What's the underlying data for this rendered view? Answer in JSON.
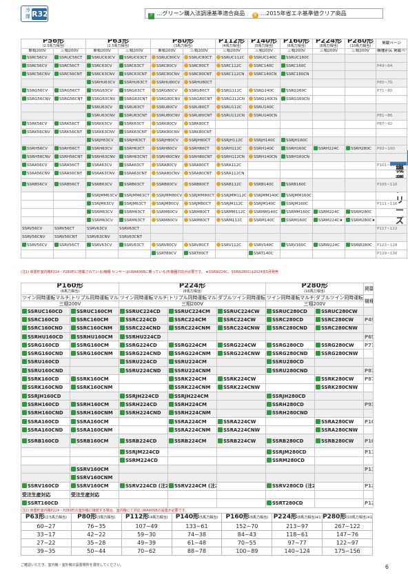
{
  "header": {
    "refr_label": "冷媒",
    "refr_value": "R32",
    "legend_green": "…グリーン購入法調達基準適合商品",
    "legend_yellow": "…2015年省エネ基準値クリア商品",
    "green_mark": "グ",
    "yellow_mark": "省"
  },
  "side_tab": "機種シリーズ",
  "colors": {
    "accent": "#2a6aa8",
    "green": "#2c9a3a",
    "yellow": "#e3a521",
    "note_red": "#c02020"
  },
  "t1": {
    "groups": [
      {
        "t": "P56形",
        "s": "(2.5馬力相当)",
        "n": 2
      },
      {
        "t": "P63形",
        "s": "(2.5馬力相当)",
        "n": 2
      },
      {
        "t": "P80形",
        "s": "(3馬力相当)",
        "n": 2
      },
      {
        "t": "P112形",
        "s": "(4馬力相当)",
        "n": 1
      },
      {
        "t": "P140形",
        "s": "(5馬力相当)",
        "n": 1
      },
      {
        "t": "P160形",
        "s": "(6馬力相当)",
        "n": 1
      },
      {
        "t": "P224形",
        "s": "(8馬力相当)",
        "n": 1
      },
      {
        "t": "P280形",
        "s": "(10馬力相当)",
        "n": 1
      }
    ],
    "ref_header": "掲載ページ",
    "sub": [
      "単相200V",
      "三相200V",
      "単相200V",
      "三相200V",
      "単相200V",
      "三相200V",
      "三相200V",
      "三相200V",
      "三相200V",
      "三相200V",
      "三相200V"
    ],
    "sub_right": "機種別名 掲載ページ",
    "rows": [
      {
        "c": [
          "g:SSRC56CV",
          "g:SSRUC56CT",
          "g:SSRUC63CV",
          "g:SSRUC63CT",
          "y:SSRUC80CV",
          "y:SSRUC80CT",
          "y:SSRUC112C",
          "y:SSRUC140C",
          "g:SSRUC160C",
          "",
          ""
        ],
        "r": "",
        "sh": 1
      },
      {
        "c": [
          "g:SSRC56CV",
          "g:SSRC56CT",
          "g:SSRC63CV",
          "g:SSRC63CT",
          "y:SSRC80CV",
          "y:SSRC80CT",
          "y:SSRC112C",
          "y:SSRC140C",
          "g:SSRC160C",
          "",
          ""
        ],
        "r": "P49~64",
        "sh": 1
      },
      {
        "c": [
          "g:SSRC56CNV",
          "g:SSRC56CNT",
          "g:SSRC63CNV",
          "g:SSRC63CNT",
          "y:SSRC80CNV",
          "y:SSRC80CNT",
          "y:SSRC112CN",
          "y:SSRC140CN",
          "g:SSRC160CN",
          "",
          ""
        ],
        "r": "",
        "sh": 1
      },
      {
        "c": [
          "",
          "",
          "g:SSRHU63CV",
          "g:SSRHU63CT",
          "y:SSRHU80CV",
          "y:SSRHU80CT",
          "",
          "",
          "",
          "",
          ""
        ],
        "r": "P65~70",
        "sh": 1
      },
      {
        "c": [
          "g:SSRG56CV",
          "g:SSRG56CT",
          "g:SSRG63CV",
          "g:SSRG63CT",
          "y:SSRG80CV",
          "y:SSRG80CT",
          "y:SSRG112C",
          "y:SSRG140C",
          "g:SSRG160C",
          "",
          ""
        ],
        "r": "P71~80",
        "sh": 0
      },
      {
        "c": [
          "g:SSRG56CNV",
          "g:SSRG56CNT",
          "g:SSRG63CNV",
          "g:SSRG63CNT",
          "y:SSRG80CNV",
          "y:SSRG80CNT",
          "y:SSRG112CN",
          "y:SSRG140CN",
          "g:SSRG160CN",
          "",
          ""
        ],
        "r": "",
        "sh": 0
      },
      {
        "c": [
          "",
          "",
          "g:SSRU63CV",
          "g:SSRU63CT",
          "y:SSRU80CV",
          "y:SSRU80CT",
          "y:SSRU112C",
          "y:SSRU140C",
          "",
          "",
          ""
        ],
        "r": "",
        "sh": 1
      },
      {
        "c": [
          "",
          "",
          "g:SSRU63CNV",
          "g:SSRU63CNT",
          "y:SSRU80CNV",
          "y:SSRU80CNT",
          "y:SSRU112CN",
          "y:SSRU140CN",
          "",
          "",
          ""
        ],
        "r": "P81~86",
        "sh": 1
      },
      {
        "c": [
          "g:SSRK56CV",
          "g:SSRK56CT",
          "g:SSRK63CV",
          "g:SSRK63CT",
          "y:SSRK80CV",
          "y:SSRK80CT",
          "",
          "",
          "",
          "",
          ""
        ],
        "r": "P87~92",
        "sh": 0
      },
      {
        "c": [
          "g:SSRK56CNV",
          "g:SSRK56CNT",
          "g:SSRK63CNV",
          "g:SSRK63CNT",
          "y:SSRK80CNV",
          "y:SSRK80CNT",
          "",
          "",
          "",
          "",
          ""
        ],
        "r": "",
        "sh": 0
      },
      {
        "c": [
          "",
          "",
          "g:SSRJH63CV",
          "g:SSRJH63CT",
          "y:SSRJH80CV",
          "y:SSRJH80CT",
          "y:SSRJH112C",
          "y:SSRJH140C",
          "g:SSRJH160C",
          "",
          ""
        ],
        "r": "",
        "sh": 1
      },
      {
        "c": [
          "g:SSRH56CV",
          "g:SSRH56CT",
          "g:SSRH63CV",
          "g:SSRH63CT",
          "y:SSRH80CV",
          "y:SSRH80CT",
          "y:SSRH112C",
          "y:SSRH140C",
          "g:SSRH160C",
          "g:SSRH224C",
          "g:SSRH280C"
        ],
        "r": "P93~100",
        "sh": 1
      },
      {
        "c": [
          "g:SSRH56CNV",
          "g:SSRH56CNT",
          "g:SSRH63CNV",
          "g:SSRH63CNT",
          "y:SSRH80CNV",
          "y:SSRH80CNT",
          "y:SSRH112CN",
          "y:SSRH140CN",
          "g:SSRH160CN",
          "",
          ""
        ],
        "r": "",
        "sh": 1
      },
      {
        "c": [
          "g:SSRA56CV",
          "g:SSRA56CT",
          "g:SSRA63CV",
          "g:SSRA63CT",
          "y:SSRA80CV",
          "y:SSRA80CT",
          "y:SSRA112C",
          "",
          "",
          "",
          ""
        ],
        "r": "P101~104",
        "sh": 0
      },
      {
        "c": [
          "g:SSRA56CNV",
          "g:SSRA56CNT",
          "g:SSRA63CNV",
          "g:SSRA63CNT",
          "y:SSRA80CNV",
          "y:SSRA80CNT",
          "y:SSRA112CN",
          "",
          "",
          "",
          ""
        ],
        "r": "",
        "sh": 0
      },
      {
        "c": [
          "g:SSRB56CV",
          "g:SSRB56CT",
          "g:SSRB63CV",
          "g:SSRB63CT",
          "y:SSRB80CV",
          "y:SSRB80CT",
          "y:SSRB112C",
          "y:SSRB140C",
          "g:SSRB160C",
          "",
          ""
        ],
        "r": "P105~110",
        "sh": 1,
        "tall": 1
      },
      {
        "c": [
          "",
          "",
          "g:SSRJMM63CV",
          "g:SSRJMM63CT",
          "y:SSRJMM80CV",
          "y:SSRJMM80CT",
          "y:SSRJMM112C",
          "y:SSRJMM140C",
          "g:SSRJMM160C",
          "",
          ""
        ],
        "r": "",
        "sh": 0
      },
      {
        "c": [
          "",
          "",
          "g:SSRJM63CV",
          "g:SSRJM63CT",
          "y:SSRJM80CV",
          "y:SSRJM80CT",
          "y:SSRJM112C",
          "y:SSRJM140C",
          "g:SSRJM160C",
          "",
          ""
        ],
        "r": "P111~116",
        "sh": 0
      },
      {
        "c": [
          "",
          "",
          "g:SSRM63CV",
          "g:SSRM63CT",
          "y:SSRM80CV",
          "y:SSRM80CT",
          "y:SSRMM112C",
          "y:SSRMM140C",
          "g:SSRMM160C",
          "g:SSRM224C",
          "g:SSRM280C"
        ],
        "r": "",
        "sh": 0
      },
      {
        "c": [
          "",
          "",
          "g:SSRM63CV",
          "g:SSRM63CT",
          "y:SSRM80CV",
          "y:SSRM80CT",
          "y:SSRM112C",
          "y:SSRM140C",
          "g:SSRM160C",
          "g:SSRM224C★",
          "g:SSRM280C★"
        ],
        "r": "",
        "sh": 0
      },
      {
        "c": [
          "SSRV56CV",
          "SSRV56CT",
          "SSRV63CV",
          "SSRV63CT",
          "",
          "",
          "",
          "",
          "",
          "",
          ""
        ],
        "r": "P117~122",
        "sh": 1
      },
      {
        "c": [
          "SSRV56CNV",
          "SSRV56CNT",
          "SSRV63CNV",
          "SSRV63CNT",
          "",
          "",
          "",
          "",
          "",
          "",
          ""
        ],
        "r": "",
        "sh": 1
      },
      {
        "c": [
          "g:SSRV56CV",
          "g:SSRV56CT",
          "g:SSRV63CV",
          "g:SSRV63CT",
          "y:SSRV80CV",
          "y:SSRV80CT",
          "y:SSRV112C",
          "y:SSRV140C",
          "g:SSRV160C",
          "g:SSRW224C",
          "g:SSRW280C"
        ],
        "r": "P123~128",
        "sh": 0
      },
      {
        "c": [
          "",
          "",
          "",
          "",
          "g:SSRT80CV",
          "g:SSRT80CT",
          "",
          "g:SSRT140C",
          "",
          "",
          ""
        ],
        "r": "P129~130",
        "sh": 0
      }
    ]
  },
  "note1": "(注1) 床置形室内機P224・P280形に搭載されている(機種 センサーはURA406Bに乗っている)形機器対応が必要です。 ★SSRW224C、SSRW280Cは2024年5月発売",
  "t2": {
    "groups": [
      {
        "t": "P160形",
        "s": "(6馬力相当)",
        "n": 2
      },
      {
        "t": "P224形",
        "s": "(8馬力相当)",
        "n": 3
      },
      {
        "t": "P280形",
        "s": "(10馬力相当)",
        "n": 2
      }
    ],
    "ref_header": "掲載ページ",
    "types": [
      "ツイン同時運転マルチ",
      "トリプル同時運転マルチ",
      "ツイン同時運転マルチ",
      "トリプル同時運転マルチ",
      "ダブルツイン同時運転マルチ",
      "ツイン同時運転マルチ",
      "ダブルツイン同時運転マルチ"
    ],
    "phase": [
      "三相200V",
      "三相200V",
      "三相200V"
    ],
    "sub_right": "機種別名 掲載ページ",
    "rows": [
      {
        "c": [
          "g:SSRUC160CD",
          "g:SSRUC160CM",
          "g:SSRUC224CD",
          "g:SSRUC224CM",
          "g:SSRUC224CW",
          "g:SSRUC280CD",
          "g:SSRUC280CW"
        ],
        "r": "",
        "sh": 1
      },
      {
        "c": [
          "g:SSRC160CD",
          "g:SSRC160CM",
          "g:SSRC224CD",
          "g:SSRC224CM",
          "g:SSRC224CW",
          "g:SSRC280CD",
          "g:SSRC280CW"
        ],
        "r": "P49~64",
        "sh": 1
      },
      {
        "c": [
          "g:SSRC160CND",
          "g:SSRC160CNM",
          "g:SSRC224CND",
          "g:SSRC224CNM",
          "g:SSRC224CNW",
          "g:SSRC280CND",
          "g:SSRC280CNW"
        ],
        "r": "",
        "sh": 1
      },
      {
        "c": [
          "g:SSRHU160CD",
          "g:SSRHU160CM",
          "g:SSRHU224CD",
          "",
          "",
          "",
          ""
        ],
        "r": "P65~70",
        "sh": 1
      },
      {
        "c": [
          "g:SSRG160CD",
          "g:SSRG160CM",
          "g:SSRG224CD",
          "g:SSRG224CM",
          "g:SSRG224CW",
          "g:SSRG280CD",
          "g:SSRG280CW"
        ],
        "r": "P71~80",
        "sh": 0
      },
      {
        "c": [
          "g:SSRG160CND",
          "g:SSRG160CNM",
          "g:SSRG224CND",
          "g:SSRG224CNM",
          "g:SSRG224CNW",
          "g:SSRG280CND",
          "g:SSRG280CNW"
        ],
        "r": "",
        "sh": 0
      },
      {
        "c": [
          "g:SSRU160CD",
          "",
          "g:SSRU224CD",
          "g:SSRU224CM",
          "",
          "g:SSRU280CD",
          ""
        ],
        "r": "",
        "sh": 1
      },
      {
        "c": [
          "g:SSRU160CND",
          "",
          "g:SSRU224CND",
          "g:SSRU224CNM",
          "",
          "g:SSRU280CND",
          ""
        ],
        "r": "P81~86",
        "sh": 1
      },
      {
        "c": [
          "g:SSRK160CD",
          "g:SSRK160CM",
          "",
          "g:SSRK224CM",
          "g:SSRK224CW",
          "",
          "g:SSRK280CW"
        ],
        "r": "P87~92",
        "sh": 0
      },
      {
        "c": [
          "g:SSRK160CND",
          "g:SSRK160CNM",
          "",
          "g:SSRK224CNM",
          "g:SSRK224CNW",
          "",
          "g:SSRK280CNW"
        ],
        "r": "",
        "sh": 0
      },
      {
        "c": [
          "g:SSRJH160CD",
          "",
          "g:SSRJH224CD",
          "g:SSRJH224CM",
          "",
          "g:SSRJH280CD",
          ""
        ],
        "r": "",
        "sh": 1
      },
      {
        "c": [
          "g:SSRH160CD",
          "g:SSRH160CM",
          "g:SSRH224CD",
          "g:SSRH224CM",
          "",
          "g:SSRH280CD",
          ""
        ],
        "r": "P93~100",
        "sh": 1
      },
      {
        "c": [
          "g:SSRH160CND",
          "g:SSRH160CNM",
          "g:SSRH224CND",
          "g:SSRH224CNM",
          "",
          "g:SSRH280CND",
          ""
        ],
        "r": "",
        "sh": 1
      },
      {
        "c": [
          "g:SSRA160CD",
          "g:SSRA160CM",
          "",
          "g:SSRA224CM",
          "g:SSRA224CW",
          "",
          "g:SSRA280CW"
        ],
        "r": "P101~104",
        "sh": 0
      },
      {
        "c": [
          "g:SSRA160CND",
          "g:SSRA160CNM",
          "",
          "g:SSRA224CNM",
          "g:SSRA224CNW",
          "",
          "g:SSRA280CNW"
        ],
        "r": "",
        "sh": 0
      },
      {
        "c": [
          "g:SSRB160CD",
          "g:SSRB160CM",
          "g:SSRB224CD",
          "g:SSRB224CM",
          "g:SSRB224CW",
          "g:SSRB280CD",
          "g:SSRB280CW"
        ],
        "r": "P105~110",
        "sh": 1,
        "tall": 1
      },
      {
        "c": [
          "",
          "",
          "g:SSRJM224CD",
          "",
          "",
          "g:SSRJM280CD",
          ""
        ],
        "r": "P111~116",
        "sh": 0
      },
      {
        "c": [
          "",
          "",
          "g:SSRM224CD",
          "",
          "",
          "g:SSRM280CD",
          ""
        ],
        "r": "",
        "sh": 0
      },
      {
        "c": [
          "",
          "g:SSRV160CM",
          "",
          "",
          "",
          "",
          ""
        ],
        "r": "P117~122",
        "sh": 1
      },
      {
        "c": [
          "",
          "g:SSRV160CNM",
          "",
          "",
          "",
          "",
          ""
        ],
        "r": "",
        "sh": 1
      },
      {
        "c": [
          "g:SSRV160CD",
          "g:SSRV160CM",
          "g:SSRV224CD (注2)",
          "g:SSRV224CM (注2)",
          "",
          "g:SSRV280CD (注2)",
          ""
        ],
        "r": "P123~128",
        "sh": 0
      },
      {
        "c": [
          "受注生産対応",
          "受注生産対応",
          "",
          "",
          "",
          "",
          ""
        ],
        "r": "",
        "sh": 0
      },
      {
        "c": [
          "g:SSRT160CD",
          "",
          "",
          "",
          "",
          "g:SSRT280CD",
          ""
        ],
        "r": "P129~130",
        "sh": 0
      }
    ]
  },
  "note2": "(注2) 床置形室内機P224・P280形の室外機に接続する場合、室内機にて対応 URA406Bの設置が必要です。",
  "cap": {
    "heads": [
      {
        "t": "P63形",
        "s": "(2.5馬力相当)"
      },
      {
        "t": "P80形",
        "s": "(3馬力相当)"
      },
      {
        "t": "P112形",
        "s": "(4馬力相当)"
      },
      {
        "t": "P140形",
        "s": "(5馬力相当)"
      },
      {
        "t": "P160形",
        "s": "(6馬力相当)"
      },
      {
        "t": "P224形",
        "s": "(8馬力相当)※1"
      },
      {
        "t": "P280形",
        "s": "(10馬力相当)※1"
      }
    ],
    "rows": [
      [
        "60~27",
        "76~35",
        "107~49",
        "133~61",
        "152~70",
        "213~97",
        "267~122"
      ],
      [
        "33~17",
        "42~22",
        "59~30",
        "74~38",
        "84~43",
        "118~61",
        "147~76"
      ],
      [
        "27~22",
        "35~28",
        "49~39",
        "61~48",
        "70~55",
        "97~77",
        "122~97"
      ],
      [
        "39~35",
        "50~44",
        "70~62",
        "88~78",
        "100~89",
        "140~124",
        "175~156"
      ]
    ]
  },
  "footnote": "ご確認いただき、室内機・室外機の設置場所を選定してください。",
  "page_number": "6"
}
